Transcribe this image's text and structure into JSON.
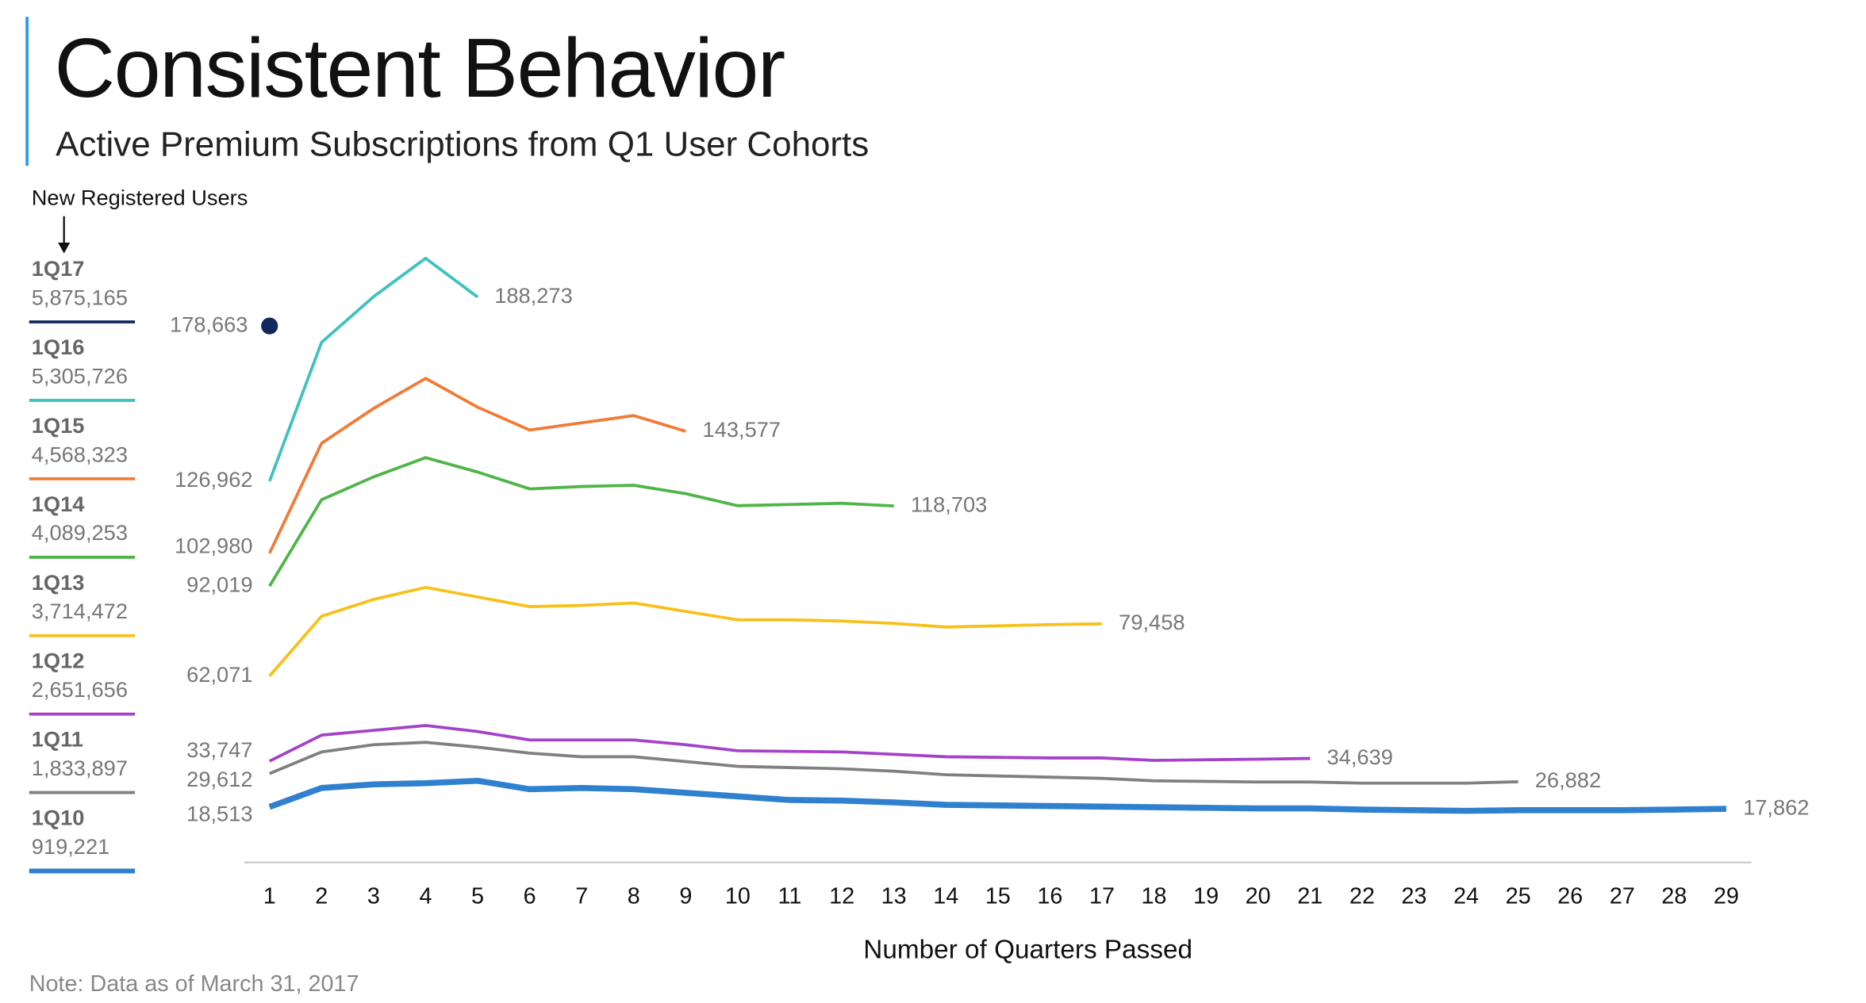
{
  "chart_data": {
    "type": "line",
    "title": "Consistent Behavior",
    "subtitle": "Active Premium Subscriptions from Q1 User Cohorts",
    "legend_title": "New Registered Users",
    "x_label": "Number of Quarters Passed",
    "note": "Note: Data as of March 31, 2017",
    "categories": [
      1,
      2,
      3,
      4,
      5,
      6,
      7,
      8,
      9,
      10,
      11,
      12,
      13,
      14,
      15,
      16,
      17,
      18,
      19,
      20,
      21,
      22,
      23,
      24,
      25,
      26,
      27,
      28,
      29
    ],
    "series": [
      {
        "name": "1Q17",
        "users": "5,875,165",
        "color": "#10285e",
        "values": [
          178663,
          null,
          null,
          null,
          null,
          null,
          null,
          null,
          null,
          null,
          null,
          null,
          null,
          null,
          null,
          null,
          null,
          null,
          null,
          null,
          null,
          null,
          null,
          null,
          null,
          null,
          null,
          null,
          null
        ],
        "value_labels": [
          "178,663",
          null,
          null,
          null,
          null,
          null,
          null,
          null,
          null,
          null,
          null,
          null,
          null,
          null,
          null,
          null,
          null,
          null,
          null,
          null,
          null,
          null,
          null,
          null,
          null,
          null,
          null,
          null,
          null
        ]
      },
      {
        "name": "1Q16",
        "users": "5,305,726",
        "color": "#3fc1bf",
        "values": [
          126962,
          173200,
          188400,
          201200,
          188273,
          null,
          null,
          null,
          null,
          null,
          null,
          null,
          null,
          null,
          null,
          null,
          null,
          null,
          null,
          null,
          null,
          null,
          null,
          null,
          null,
          null,
          null,
          null,
          null
        ],
        "value_labels": [
          "126,962",
          null,
          null,
          null,
          "188,273",
          null,
          null,
          null,
          null,
          null,
          null,
          null,
          null,
          null,
          null,
          null,
          null,
          null,
          null,
          null,
          null,
          null,
          null,
          null,
          null,
          null,
          null,
          null,
          null
        ]
      },
      {
        "name": "1Q15",
        "users": "4,568,323",
        "color": "#f07b36",
        "values": [
          102980,
          139600,
          151200,
          161200,
          151600,
          144000,
          146400,
          148800,
          143577,
          null,
          null,
          null,
          null,
          null,
          null,
          null,
          null,
          null,
          null,
          null,
          null,
          null,
          null,
          null,
          null,
          null,
          null,
          null,
          null
        ],
        "value_labels": [
          "102,980",
          null,
          null,
          null,
          null,
          null,
          null,
          null,
          "143,577",
          null,
          null,
          null,
          null,
          null,
          null,
          null,
          null,
          null,
          null,
          null,
          null,
          null,
          null,
          null,
          null,
          null,
          null,
          null,
          null
        ]
      },
      {
        "name": "1Q14",
        "users": "4,089,253",
        "color": "#4fb548",
        "values": [
          92019,
          120800,
          128400,
          134800,
          130000,
          124400,
          125200,
          125600,
          122800,
          118800,
          119200,
          119600,
          118703,
          null,
          null,
          null,
          null,
          null,
          null,
          null,
          null,
          null,
          null,
          null,
          null,
          null,
          null,
          null,
          null
        ],
        "value_labels": [
          "92,019",
          null,
          null,
          null,
          null,
          null,
          null,
          null,
          null,
          null,
          null,
          null,
          "118,703",
          null,
          null,
          null,
          null,
          null,
          null,
          null,
          null,
          null,
          null,
          null,
          null,
          null,
          null,
          null,
          null
        ]
      },
      {
        "name": "1Q13",
        "users": "3,714,472",
        "color": "#f7c118",
        "values": [
          62071,
          82000,
          87600,
          91600,
          88400,
          85200,
          85600,
          86400,
          83600,
          80800,
          80800,
          80400,
          79600,
          78400,
          78800,
          79200,
          79458,
          null,
          null,
          null,
          null,
          null,
          null,
          null,
          null,
          null,
          null,
          null,
          null
        ],
        "value_labels": [
          "62,071",
          null,
          null,
          null,
          null,
          null,
          null,
          null,
          null,
          null,
          null,
          null,
          null,
          null,
          null,
          null,
          "79,458",
          null,
          null,
          null,
          null,
          null,
          null,
          null,
          null,
          null,
          null,
          null,
          null
        ]
      },
      {
        "name": "1Q12",
        "users": "2,651,656",
        "color": "#a443c8",
        "values": [
          33747,
          42400,
          44000,
          45600,
          43600,
          40800,
          40800,
          40800,
          39200,
          37200,
          37000,
          36800,
          36000,
          35200,
          35000,
          34800,
          34800,
          34000,
          34200,
          34400,
          34639,
          null,
          null,
          null,
          null,
          null,
          null,
          null,
          null
        ],
        "value_labels": [
          "33,747",
          null,
          null,
          null,
          null,
          null,
          null,
          null,
          null,
          null,
          null,
          null,
          null,
          null,
          null,
          null,
          null,
          null,
          null,
          null,
          "34,639",
          null,
          null,
          null,
          null,
          null,
          null,
          null,
          null
        ]
      },
      {
        "name": "1Q11",
        "users": "1,833,897",
        "color": "#808080",
        "values": [
          29612,
          36800,
          39200,
          40000,
          38400,
          36400,
          35200,
          35200,
          33600,
          32000,
          31600,
          31200,
          30400,
          29200,
          28800,
          28400,
          28000,
          27200,
          27000,
          26800,
          26800,
          26400,
          26400,
          26400,
          26882,
          null,
          null,
          null,
          null
        ],
        "value_labels": [
          "29,612",
          null,
          null,
          null,
          null,
          null,
          null,
          null,
          null,
          null,
          null,
          null,
          null,
          null,
          null,
          null,
          null,
          null,
          null,
          null,
          null,
          null,
          null,
          null,
          "26,882",
          null,
          null,
          null,
          null
        ]
      },
      {
        "name": "1Q10",
        "users": "919,221",
        "color": "#2f80cf",
        "values": [
          18513,
          24800,
          26000,
          26400,
          27200,
          24400,
          24800,
          24400,
          23200,
          22000,
          20800,
          20600,
          20000,
          19200,
          19000,
          18800,
          18600,
          18400,
          18200,
          18000,
          18000,
          17600,
          17400,
          17200,
          17400,
          17400,
          17400,
          17600,
          17862
        ],
        "value_labels": [
          "18,513",
          null,
          null,
          null,
          null,
          null,
          null,
          null,
          null,
          null,
          null,
          null,
          null,
          null,
          null,
          null,
          null,
          null,
          null,
          null,
          null,
          null,
          null,
          null,
          null,
          null,
          null,
          null,
          "17,862"
        ]
      }
    ]
  }
}
